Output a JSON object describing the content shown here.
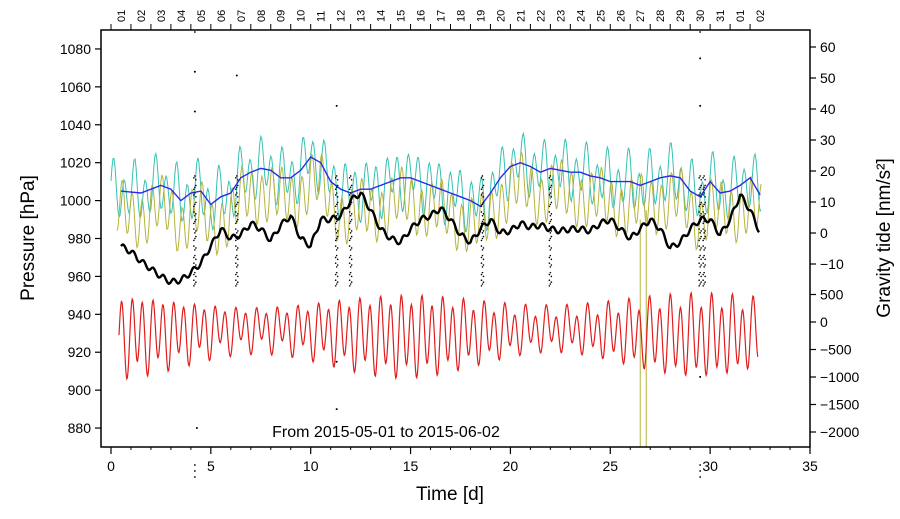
{
  "chart_data": {
    "type": "line",
    "annotation": "From 2015-05-01 to 2015-06-02",
    "xlabel": "Time [d]",
    "ylabel_left": "Pressure [hPa]",
    "ylabel_right": "Gravity tide [nm/s²]",
    "xlim": [
      -0.5,
      35
    ],
    "ylim_left": [
      870,
      1090
    ],
    "x_ticks": [
      0,
      5,
      10,
      15,
      20,
      25,
      30,
      35
    ],
    "x_tick_labels": [
      "0",
      "5",
      "10",
      "15",
      "20",
      "25",
      "30",
      "35"
    ],
    "left_ticks": [
      880,
      900,
      920,
      940,
      960,
      980,
      1000,
      1020,
      1040,
      1060,
      1080
    ],
    "left_tick_labels": [
      "880",
      "900",
      "920",
      "940",
      "960",
      "980",
      "1000",
      "1020",
      "1040",
      "1060",
      "1080"
    ],
    "right_upper_ticks": {
      "values": [
        -10,
        0,
        10,
        20,
        30,
        40,
        50,
        60
      ],
      "labels": [
        "−10",
        "0",
        "10",
        "20",
        "30",
        "40",
        "50",
        "60"
      ]
    },
    "right_lower_ticks": {
      "values": [
        -2000,
        -1500,
        -1000,
        -500,
        0,
        500
      ],
      "labels": [
        "−2000",
        "−1500",
        "−1000",
        "−500",
        "0",
        "500"
      ]
    },
    "day_labels": [
      "01",
      "02",
      "03",
      "04",
      "05",
      "06",
      "07",
      "08",
      "09",
      "10",
      "11",
      "12",
      "13",
      "14",
      "15",
      "16",
      "17",
      "18",
      "19",
      "20",
      "21",
      "22",
      "23",
      "24",
      "25",
      "26",
      "27",
      "28",
      "29",
      "30",
      "31",
      "01",
      "02"
    ],
    "series": [
      {
        "name": "pressure",
        "color": "#000000",
        "x": [
          0.5,
          1,
          1.5,
          2,
          2.5,
          3,
          3.5,
          4,
          4.5,
          5,
          5.5,
          6,
          6.5,
          7,
          7.5,
          8,
          8.5,
          9,
          9.5,
          10,
          10.5,
          11,
          11.5,
          12,
          12.5,
          13,
          13.5,
          14,
          14.5,
          15,
          15.5,
          16,
          16.5,
          17,
          17.5,
          18,
          18.5,
          19,
          19.5,
          20,
          20.5,
          21,
          21.5,
          22,
          22.5,
          23,
          23.5,
          24,
          24.5,
          25,
          25.5,
          26,
          26.5,
          27,
          27.5,
          28,
          28.5,
          29,
          29.5,
          30,
          30.5,
          31,
          31.5,
          32,
          32.5
        ],
        "values": [
          976,
          973,
          968,
          964,
          960,
          957,
          958,
          962,
          967,
          976,
          985,
          980,
          982,
          988,
          985,
          979,
          987,
          992,
          980,
          976,
          990,
          990,
          992,
          1000,
          1004,
          995,
          985,
          980,
          978,
          985,
          990,
          992,
          996,
          990,
          982,
          978,
          985,
          990,
          983,
          984,
          988,
          986,
          987,
          985,
          984,
          985,
          985,
          984,
          988,
          990,
          985,
          980,
          985,
          990,
          985,
          975,
          978,
          985,
          990,
          990,
          982,
          990,
          1003,
          995,
          983
        ]
      },
      {
        "name": "blue",
        "color": "#2a2ae8",
        "x": [
          0.5,
          1.5,
          2.5,
          3,
          3.5,
          4,
          4.5,
          5,
          5.5,
          6,
          6.5,
          7,
          7.5,
          8,
          8.5,
          9,
          9.5,
          10,
          10.5,
          11,
          11.5,
          12,
          12.5,
          13,
          13.5,
          14,
          14.5,
          15,
          15.5,
          16,
          16.5,
          17,
          17.5,
          18,
          18.5,
          19,
          19.5,
          20,
          20.5,
          21,
          21.5,
          22,
          22.5,
          23,
          23.5,
          24,
          24.5,
          25,
          25.5,
          26,
          26.5,
          27,
          27.5,
          28,
          28.5,
          29,
          29.5,
          30,
          30.5,
          31,
          31.5,
          32,
          32.5
        ],
        "values": [
          1005,
          1004,
          1008,
          1006,
          1000,
          1004,
          1005,
          998,
          1002,
          1004,
          1012,
          1015,
          1017,
          1016,
          1012,
          1012,
          1016,
          1023,
          1020,
          1010,
          1006,
          1004,
          1006,
          1006,
          1008,
          1010,
          1012,
          1012,
          1010,
          1008,
          1006,
          1004,
          1002,
          1000,
          997,
          1004,
          1012,
          1018,
          1020,
          1018,
          1015,
          1017,
          1016,
          1015,
          1015,
          1013,
          1012,
          1010,
          1010,
          1010,
          1008,
          1010,
          1012,
          1013,
          1012,
          1005,
          1002,
          1010,
          1004,
          1005,
          1008,
          1012,
          1003
        ]
      },
      {
        "name": "turquoise",
        "color": "#35c2b4",
        "amplitude": 20,
        "range": [
          990,
          1045
        ]
      },
      {
        "name": "olive",
        "color": "#b6b33e",
        "amplitude": 22,
        "range": [
          960,
          1035
        ]
      },
      {
        "name": "gravity_tide",
        "color": "#e11d1d",
        "unit": "nm/s²",
        "amplitude_range": [
          -1050,
          540
        ]
      }
    ]
  }
}
